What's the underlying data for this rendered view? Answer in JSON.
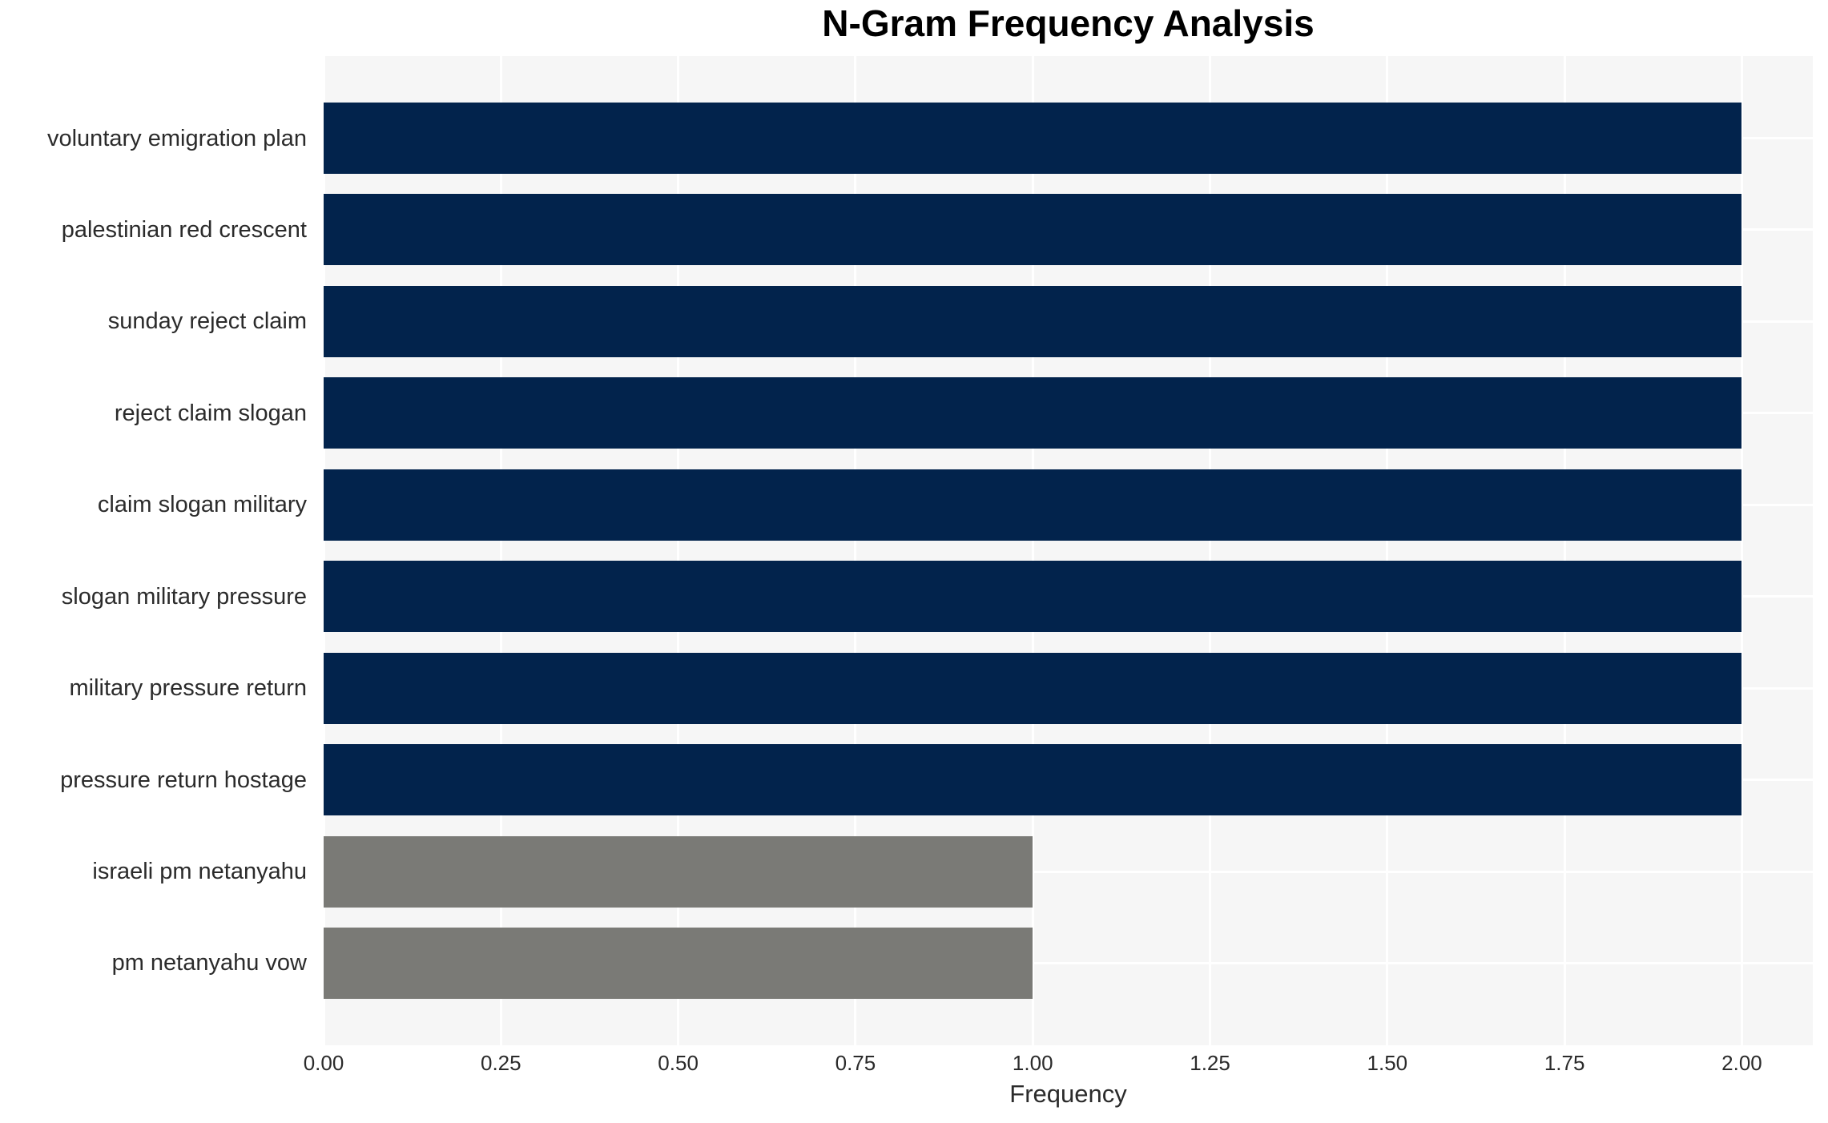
{
  "chart_data": {
    "type": "bar",
    "orientation": "horizontal",
    "title": "N-Gram Frequency Analysis",
    "xlabel": "Frequency",
    "ylabel": "",
    "categories": [
      "voluntary emigration plan",
      "palestinian red crescent",
      "sunday reject claim",
      "reject claim slogan",
      "claim slogan military",
      "slogan military pressure",
      "military pressure return",
      "pressure return hostage",
      "israeli pm netanyahu",
      "pm netanyahu vow"
    ],
    "values": [
      2.0,
      2.0,
      2.0,
      2.0,
      2.0,
      2.0,
      2.0,
      2.0,
      1.0,
      1.0
    ],
    "bar_colors": [
      "#02234c",
      "#02234c",
      "#02234c",
      "#02234c",
      "#02234c",
      "#02234c",
      "#02234c",
      "#02234c",
      "#7a7a76",
      "#7a7a76"
    ],
    "xticks": [
      "0.00",
      "0.25",
      "0.50",
      "0.75",
      "1.00",
      "1.25",
      "1.50",
      "1.75",
      "2.00"
    ],
    "xlim": [
      0,
      2.1
    ],
    "grid": true,
    "legend": false,
    "colors": {
      "plot_background": "#f6f6f6",
      "gridline": "#ffffff",
      "page_background": "#ffffff"
    }
  }
}
